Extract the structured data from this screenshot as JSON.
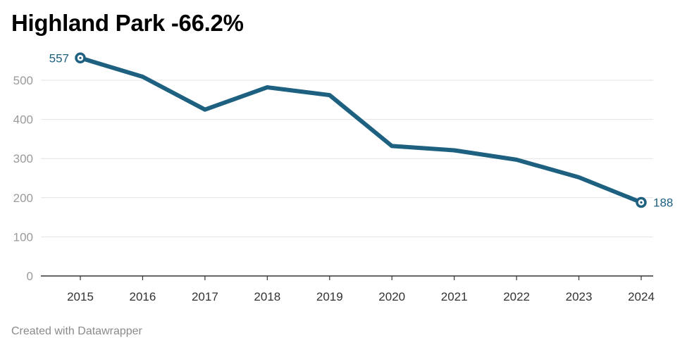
{
  "title": "Highland Park -66.2%",
  "footer": "Created with Datawrapper",
  "colors": {
    "line": "#1d6080",
    "grid": "#e2e2e2",
    "axis": "#333333"
  },
  "chart_data": {
    "type": "line",
    "title": "Highland Park -66.2%",
    "x": [
      "2015",
      "2016",
      "2017",
      "2018",
      "2019",
      "2020",
      "2021",
      "2022",
      "2023",
      "2024"
    ],
    "series": [
      {
        "values": [
          557,
          509,
          425,
          482,
          462,
          332,
          321,
          297,
          252,
          188
        ]
      }
    ],
    "y_ticks": [
      0,
      100,
      200,
      300,
      400,
      500
    ],
    "ylim": [
      0,
      557
    ],
    "grid": true,
    "data_labels": [
      {
        "x": "2015",
        "value": "557"
      },
      {
        "x": "2024",
        "value": "188"
      }
    ]
  }
}
